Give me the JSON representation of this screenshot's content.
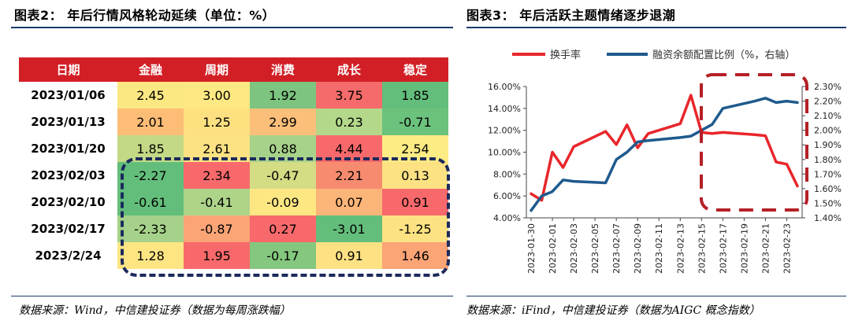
{
  "left_figure": {
    "title": "图表2：  年后行情风格轮动延续（单位：%）",
    "source": "数据来源：Wind，中信建投证券（数据为每周涨跌幅）",
    "chart_data": {
      "type": "table",
      "columns": [
        "日期",
        "金融",
        "周期",
        "消费",
        "成长",
        "稳定"
      ],
      "rows": [
        {
          "date": "2023/01/06",
          "values": [
            "2.45",
            "3.00",
            "1.92",
            "3.75",
            "1.85"
          ],
          "colors": [
            "#fce883",
            "#fde883",
            "#7cc47f",
            "#f56b6b",
            "#63be7b"
          ]
        },
        {
          "date": "2023/01/13",
          "values": [
            "2.01",
            "1.25",
            "2.99",
            "0.23",
            "-0.71"
          ],
          "colors": [
            "#fdbd77",
            "#fde181",
            "#fbbf7a",
            "#b3d88a",
            "#6bc27d"
          ]
        },
        {
          "date": "2023/01/20",
          "values": [
            "1.85",
            "2.61",
            "0.88",
            "4.44",
            "2.54"
          ],
          "colors": [
            "#c3d985",
            "#fde283",
            "#a7d28a",
            "#f8696b",
            "#fdeb84"
          ]
        },
        {
          "date": "2023/02/03",
          "values": [
            "-2.27",
            "2.34",
            "-0.47",
            "2.21",
            "0.13"
          ],
          "colors": [
            "#63be7b",
            "#f8696b",
            "#d4dc84",
            "#f78b6f",
            "#fde283"
          ]
        },
        {
          "date": "2023/02/10",
          "values": [
            "-0.61",
            "-0.41",
            "-0.09",
            "0.07",
            "0.91"
          ],
          "colors": [
            "#63be7b",
            "#aed48a",
            "#fde783",
            "#fcb578",
            "#f8696b"
          ]
        },
        {
          "date": "2023/02/17",
          "values": [
            "-2.33",
            "-0.87",
            "0.27",
            "-3.01",
            "-1.25"
          ],
          "colors": [
            "#a6d18a",
            "#fba476",
            "#f8696b",
            "#63be7b",
            "#fde283"
          ]
        },
        {
          "date": "2023/2/24",
          "values": [
            "1.28",
            "1.95",
            "-0.17",
            "0.91",
            "1.46"
          ],
          "colors": [
            "#fee583",
            "#f8696b",
            "#84c77e",
            "#fde183",
            "#fba476"
          ]
        }
      ]
    }
  },
  "right_figure": {
    "title": "图表3：  年后活跃主题情绪逐步退潮",
    "source": "数据来源：iFind，中信建投证券（数据为AIGC 概念指数）",
    "chart_data": {
      "type": "line",
      "x": [
        "2023-01-30",
        "2023-01-31",
        "2023-02-01",
        "2023-02-02",
        "2023-02-03",
        "2023-02-06",
        "2023-02-07",
        "2023-02-08",
        "2023-02-09",
        "2023-02-10",
        "2023-02-13",
        "2023-02-14",
        "2023-02-15",
        "2023-02-16",
        "2023-02-17",
        "2023-02-20",
        "2023-02-21",
        "2023-02-22",
        "2023-02-23",
        "2023-02-24"
      ],
      "x_tick_labels": [
        "2023-01-30",
        "2023-02-01",
        "2023-02-03",
        "2023-02-05",
        "2023-02-07",
        "2023-02-09",
        "2023-02-11",
        "2023-02-13",
        "2023-02-15",
        "2023-02-17",
        "2023-02-19",
        "2023-02-21",
        "2023-02-23"
      ],
      "series": [
        {
          "name": "换手率",
          "axis": "left",
          "color": "#e8262b",
          "values": [
            6.2,
            5.6,
            10.0,
            8.6,
            10.5,
            11.9,
            10.7,
            12.5,
            10.4,
            11.7,
            12.6,
            15.2,
            11.8,
            11.7,
            11.8,
            11.6,
            11.5,
            9.1,
            8.9,
            6.9
          ]
        },
        {
          "name": "融资余额配置比例（%，右轴）",
          "axis": "right",
          "color": "#1f5a8c",
          "values": [
            1.45,
            1.55,
            1.58,
            1.66,
            1.65,
            1.64,
            1.8,
            1.85,
            1.92,
            1.93,
            1.95,
            1.96,
            2.0,
            2.04,
            2.15,
            2.2,
            2.22,
            2.19,
            2.2,
            2.19
          ]
        }
      ],
      "y_left": {
        "min": 4,
        "max": 16,
        "step": 2,
        "format": "percent2"
      },
      "y_right": {
        "min": 1.4,
        "max": 2.3,
        "step": 0.1,
        "format": "percent2"
      },
      "legend_position": "top"
    }
  }
}
